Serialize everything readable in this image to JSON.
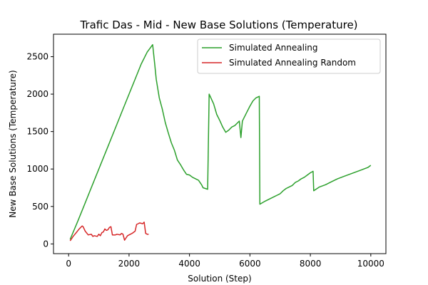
{
  "chart_data": {
    "type": "line",
    "title": "Trafic Das - Mid - New Base Solutions (Temperature)",
    "xlabel": "Solution (Step)",
    "ylabel": "New Base Solutions (Temperature)",
    "xlim": [
      -500,
      10500
    ],
    "ylim": [
      -130,
      2800
    ],
    "xticks": [
      0,
      2000,
      4000,
      6000,
      8000,
      10000
    ],
    "yticks": [
      0,
      500,
      1000,
      1500,
      2000,
      2500
    ],
    "grid": false,
    "legend_position": "top-right",
    "series": [
      {
        "name": "Simulated Annealing",
        "color": "#2ca02c",
        "x": [
          50,
          300,
          500,
          800,
          1100,
          1300,
          1600,
          1800,
          2000,
          2200,
          2400,
          2600,
          2780,
          2850,
          2900,
          3000,
          3100,
          3200,
          3300,
          3400,
          3500,
          3600,
          3700,
          3800,
          3900,
          4000,
          4100,
          4200,
          4300,
          4400,
          4450,
          4600,
          4650,
          4800,
          4900,
          5000,
          5100,
          5200,
          5300,
          5400,
          5500,
          5600,
          5650,
          5700,
          5750,
          5800,
          5900,
          6000,
          6100,
          6200,
          6310,
          6330,
          6500,
          6700,
          6800,
          6900,
          7000,
          7100,
          7200,
          7300,
          7400,
          7500,
          7600,
          7700,
          7800,
          7900,
          8000,
          8090,
          8110,
          8300,
          8500,
          8700,
          8900,
          9100,
          9300,
          9500,
          9700,
          9900,
          10000
        ],
        "y": [
          60,
          300,
          500,
          800,
          1100,
          1300,
          1600,
          1800,
          2000,
          2200,
          2400,
          2560,
          2660,
          2400,
          2200,
          1950,
          1800,
          1620,
          1480,
          1350,
          1250,
          1120,
          1060,
          990,
          930,
          920,
          890,
          870,
          850,
          790,
          750,
          730,
          2000,
          1870,
          1730,
          1650,
          1560,
          1490,
          1520,
          1560,
          1580,
          1620,
          1640,
          1420,
          1640,
          1680,
          1760,
          1840,
          1910,
          1950,
          1970,
          530,
          570,
          610,
          630,
          650,
          670,
          710,
          740,
          760,
          780,
          820,
          840,
          870,
          890,
          920,
          950,
          970,
          710,
          760,
          790,
          830,
          870,
          900,
          930,
          960,
          990,
          1020,
          1050
        ]
      },
      {
        "name": "Simulated Annealing Random",
        "color": "#d62728",
        "x": [
          50,
          150,
          250,
          350,
          450,
          480,
          550,
          650,
          750,
          800,
          850,
          950,
          1000,
          1050,
          1100,
          1150,
          1200,
          1250,
          1300,
          1350,
          1400,
          1450,
          1500,
          1550,
          1600,
          1700,
          1750,
          1800,
          1850,
          1900,
          1950,
          2000,
          2100,
          2200,
          2250,
          2300,
          2350,
          2450,
          2500,
          2550,
          2600,
          2650
        ],
        "y": [
          40,
          100,
          150,
          200,
          240,
          230,
          170,
          120,
          130,
          100,
          110,
          100,
          130,
          110,
          150,
          160,
          200,
          180,
          190,
          220,
          230,
          120,
          120,
          120,
          130,
          120,
          140,
          130,
          50,
          80,
          110,
          120,
          140,
          170,
          260,
          270,
          280,
          270,
          290,
          140,
          130,
          130
        ]
      }
    ]
  }
}
